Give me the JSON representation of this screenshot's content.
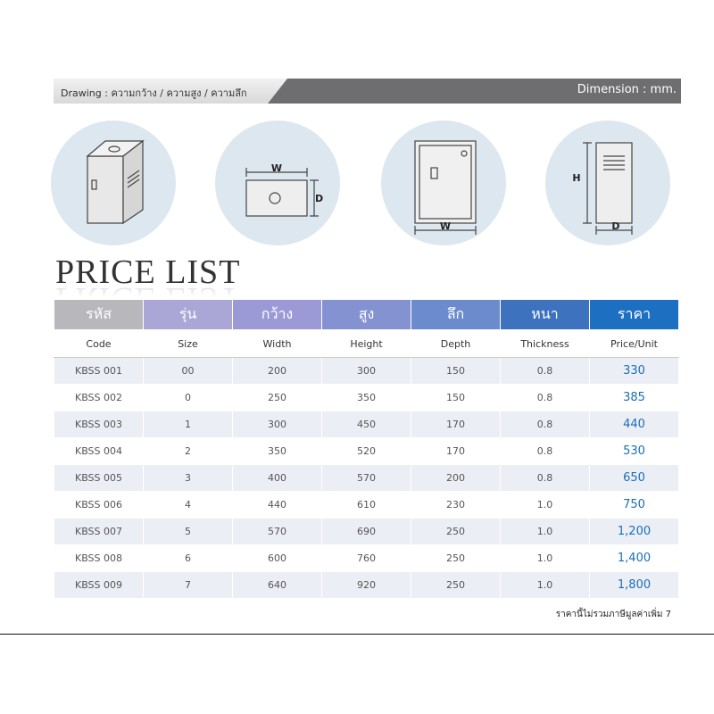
{
  "header": {
    "drawing": "Drawing : ความกว้าง / ความสูง / ความลึก",
    "dimension": "Dimension : mm."
  },
  "drawings": [
    {
      "labels": []
    },
    {
      "labels": [
        "W",
        "D"
      ]
    },
    {
      "labels": [
        "W"
      ]
    },
    {
      "labels": [
        "H",
        "D"
      ]
    }
  ],
  "title": "PRICE LIST",
  "table": {
    "header_th": [
      "รหัส",
      "รุ่น",
      "กว้าง",
      "สูง",
      "ลึก",
      "หนา",
      "ราคา"
    ],
    "header_en": [
      "Code",
      "Size",
      "Width",
      "Height",
      "Depth",
      "Thickness",
      "Price/Unit"
    ],
    "rows": [
      [
        "KBSS 001",
        "00",
        "200",
        "300",
        "150",
        "0.8",
        "330"
      ],
      [
        "KBSS 002",
        "0",
        "250",
        "350",
        "150",
        "0.8",
        "385"
      ],
      [
        "KBSS 003",
        "1",
        "300",
        "450",
        "170",
        "0.8",
        "440"
      ],
      [
        "KBSS 004",
        "2",
        "350",
        "520",
        "170",
        "0.8",
        "530"
      ],
      [
        "KBSS 005",
        "3",
        "400",
        "570",
        "200",
        "0.8",
        "650"
      ],
      [
        "KBSS 006",
        "4",
        "440",
        "610",
        "230",
        "1.0",
        "750"
      ],
      [
        "KBSS 007",
        "5",
        "570",
        "690",
        "250",
        "1.0",
        "1,200"
      ],
      [
        "KBSS 008",
        "6",
        "600",
        "760",
        "250",
        "1.0",
        "1,400"
      ],
      [
        "KBSS 009",
        "7",
        "640",
        "920",
        "250",
        "1.0",
        "1,800"
      ]
    ]
  },
  "footnote": "ราคานี้ไม่รวมภาษีมูลค่าเพิ่ม 7"
}
